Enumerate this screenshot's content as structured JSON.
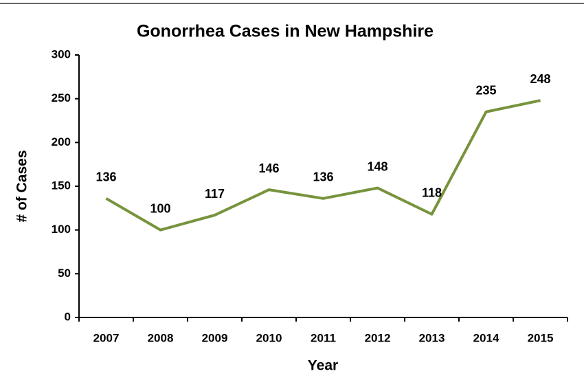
{
  "chart_data": {
    "type": "line",
    "title": "Gonorrhea Cases in New Hampshire",
    "x_label": "Year",
    "y_label": "# of Cases",
    "categories": [
      "2007",
      "2008",
      "2009",
      "2010",
      "2011",
      "2012",
      "2013",
      "2014",
      "2015"
    ],
    "series": [
      {
        "name": "Cases",
        "color": "#77933c",
        "values": [
          136,
          100,
          117,
          146,
          136,
          148,
          118,
          235,
          248
        ]
      }
    ],
    "ylim": [
      0,
      300
    ],
    "yticks": [
      0,
      50,
      100,
      150,
      200,
      250,
      300
    ]
  }
}
